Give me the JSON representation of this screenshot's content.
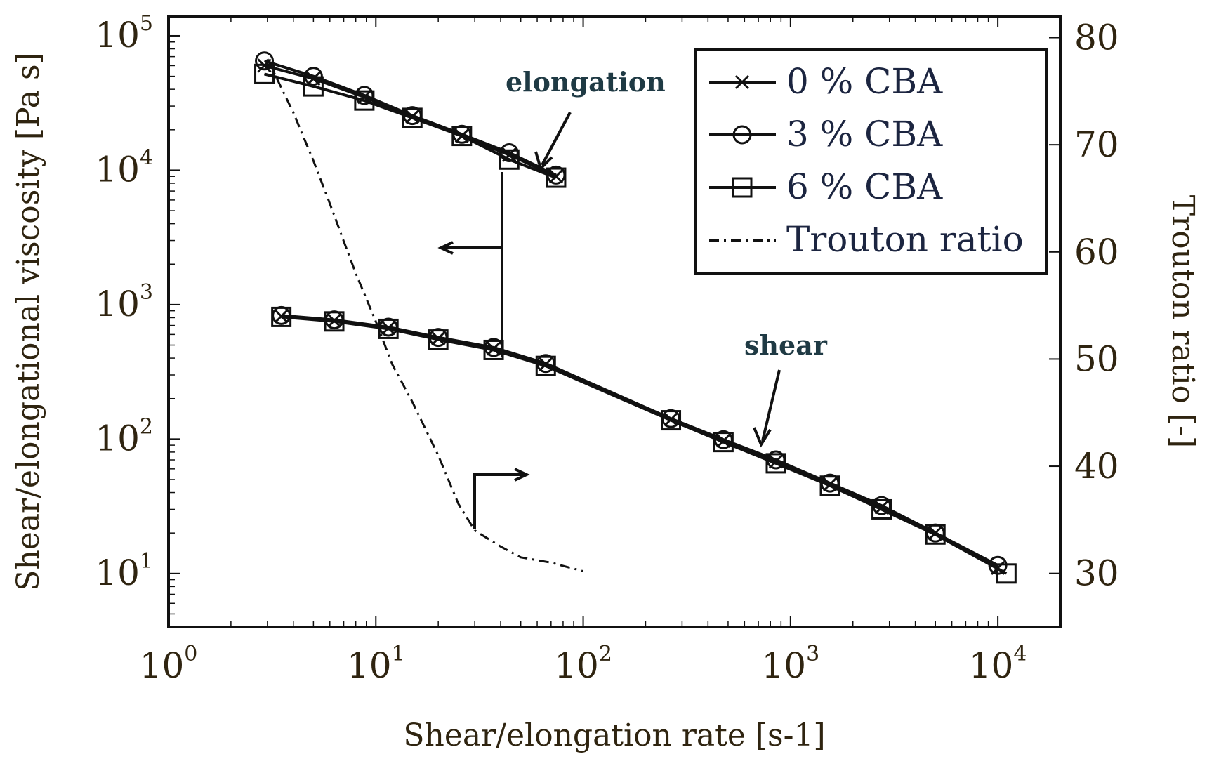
{
  "chart_data": {
    "type": "line",
    "xlabel": "Shear/elongation rate [s-1]",
    "ylabel": "Shear/elongational viscosity [Pa s]",
    "y2label": "Trouton ratio [-]",
    "xscale": "log",
    "yscale": "log",
    "xlim": [
      1,
      20000
    ],
    "ylim": [
      4,
      140000
    ],
    "y2lim": [
      25,
      82
    ],
    "x_ticks": [
      {
        "value": 1,
        "base": "10",
        "exp": "0"
      },
      {
        "value": 10,
        "base": "10",
        "exp": "1"
      },
      {
        "value": 100,
        "base": "10",
        "exp": "2"
      },
      {
        "value": 1000,
        "base": "10",
        "exp": "3"
      },
      {
        "value": 10000,
        "base": "10",
        "exp": "4"
      }
    ],
    "y_ticks": [
      {
        "value": 10,
        "base": "10",
        "exp": "1"
      },
      {
        "value": 100,
        "base": "10",
        "exp": "2"
      },
      {
        "value": 1000,
        "base": "10",
        "exp": "3"
      },
      {
        "value": 10000,
        "base": "10",
        "exp": "4"
      },
      {
        "value": 100000,
        "base": "10",
        "exp": "5"
      }
    ],
    "y2_ticks": [
      30,
      40,
      50,
      60,
      70,
      80
    ],
    "series": [
      {
        "name": "0 % CBA",
        "marker": "x",
        "axis": "left",
        "groups": [
          {
            "x": [
              2.9,
              5.0,
              8.8,
              15,
              26,
              44,
              74
            ],
            "y": [
              60000,
              48000,
              35000,
              25000,
              18000,
              13000,
              9000
            ]
          },
          {
            "x": [
              3.5,
              6.3,
              11.5,
              20,
              37,
              66,
              265,
              475,
              850,
              1550,
              2750,
              5000,
              10000
            ],
            "y": [
              820,
              760,
              670,
              560,
              470,
              360,
              140,
              97,
              68,
              46,
              31,
              20,
              11
            ]
          }
        ]
      },
      {
        "name": "3 % CBA",
        "marker": "circle",
        "axis": "left",
        "groups": [
          {
            "x": [
              2.9,
              5.0,
              8.8,
              15,
              26,
              44,
              74
            ],
            "y": [
              65000,
              50000,
              36000,
              25500,
              18500,
              13500,
              9200
            ]
          },
          {
            "x": [
              3.5,
              6.3,
              11.5,
              20,
              37,
              66,
              265,
              475,
              850,
              1550,
              2750,
              5000,
              10000
            ],
            "y": [
              830,
              770,
              680,
              570,
              480,
              365,
              142,
              99,
              70,
              47,
              32,
              20,
              11.5
            ]
          }
        ]
      },
      {
        "name": "6 % CBA",
        "marker": "square",
        "axis": "left",
        "groups": [
          {
            "x": [
              2.9,
              5.0,
              8.8,
              15,
              26,
              44,
              74
            ],
            "y": [
              52000,
              42000,
              33000,
              24500,
              18000,
              12000,
              8800
            ]
          },
          {
            "x": [
              3.5,
              6.3,
              11.5,
              20,
              37,
              66,
              265,
              475,
              850,
              1550,
              2750,
              5000,
              11000
            ],
            "y": [
              810,
              750,
              660,
              550,
              460,
              350,
              138,
              95,
              66,
              45,
              30,
              19.5,
              10
            ]
          }
        ]
      },
      {
        "name": "Trouton ratio",
        "marker": "none",
        "style": "dashdot",
        "axis": "right",
        "groups": [
          {
            "x": [
              3.0,
              4.0,
              5.0,
              6.0,
              7.0,
              8.0,
              10,
              12,
              15,
              20,
              25,
              30,
              40,
              50,
              70,
              100
            ],
            "y": [
              78,
              73,
              68.5,
              64.5,
              61,
              58,
              53.5,
              49.5,
              46,
              41,
              36.5,
              34,
              32.5,
              31.5,
              31,
              30.2
            ]
          }
        ]
      }
    ],
    "legend": {
      "position": "top-right",
      "entries": [
        "0 % CBA",
        "3 % CBA",
        "6 % CBA",
        "Trouton ratio"
      ]
    },
    "annotations": [
      {
        "text": "elongation",
        "x": 55,
        "y": 50000
      },
      {
        "text": "shear",
        "x": 700,
        "y": 450
      }
    ]
  }
}
